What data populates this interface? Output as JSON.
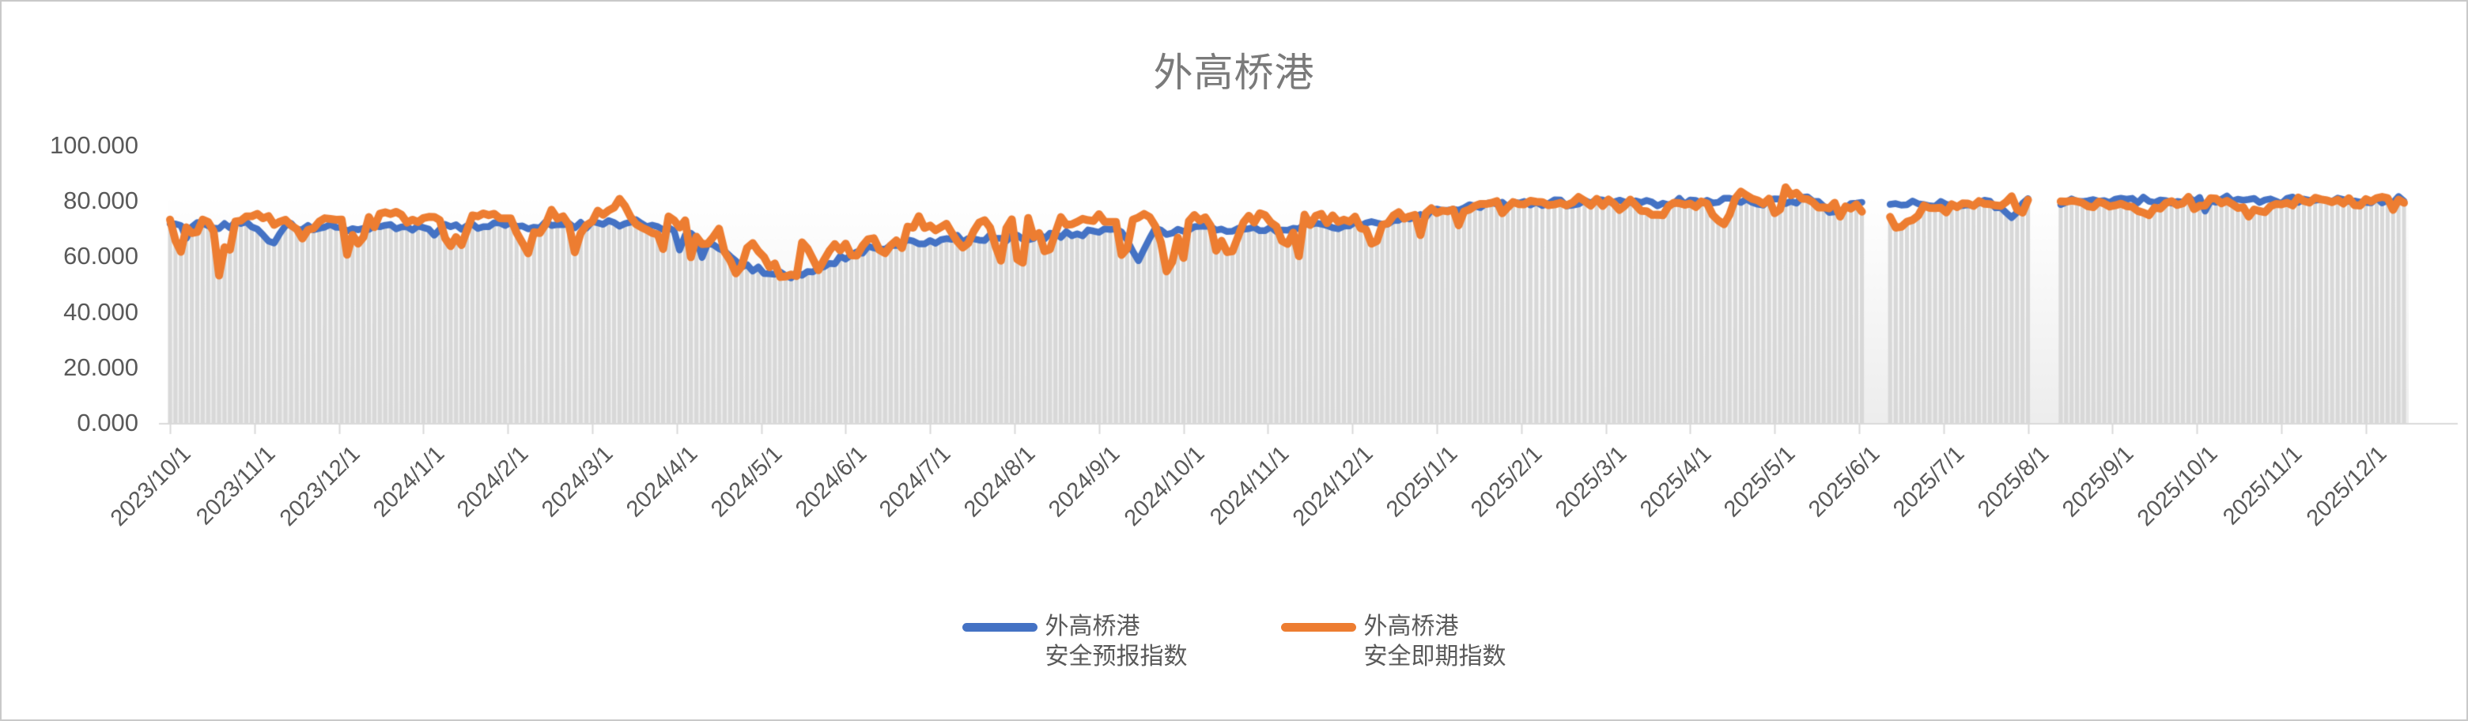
{
  "window": {
    "border_color": "#c9c9c9",
    "background": "#ffffff"
  },
  "chart_data": {
    "type": "line",
    "title": "外高桥港",
    "title_color": "#7a7a7a",
    "grid": false,
    "legend_position": "bottom",
    "y_axis": {
      "min": 0,
      "max": 100,
      "tick_labels": [
        "100.000",
        "80.000",
        "60.000",
        "40.000",
        "20.000",
        "0.000"
      ],
      "tick_values": [
        100,
        80,
        60,
        40,
        20,
        0
      ],
      "label_color": "#595959"
    },
    "x_axis": {
      "tick_labels": [
        "2023/10/1",
        "2023/11/1",
        "2023/12/1",
        "2024/1/1",
        "2024/2/1",
        "2024/3/1",
        "2024/4/1",
        "2024/5/1",
        "2024/6/1",
        "2024/7/1",
        "2024/8/1",
        "2024/9/1",
        "2024/10/1",
        "2024/11/1",
        "2024/12/1",
        "2025/1/1",
        "2025/2/1",
        "2025/3/1",
        "2025/4/1",
        "2025/5/1",
        "2025/6/1",
        "2025/7/1",
        "2025/8/1",
        "2025/9/1",
        "2025/10/1",
        "2025/11/1",
        "2025/12/1"
      ],
      "label_color": "#595959",
      "axis_color": "#d9d9d9",
      "data_start": "2023/10/1",
      "data_end": "2025/12/16",
      "sample_interval_days": 2
    },
    "gaps": [
      {
        "start": "2025/6/4",
        "end": "2025/6/11"
      },
      {
        "start": "2025/8/3",
        "end": "2025/8/12"
      }
    ],
    "bars": {
      "color": "#d8d8d8",
      "backdrop_top": "#ffffff",
      "backdrop_bottom": "#ededed",
      "rule": "column drawn at every sample up to min(series values)"
    },
    "series": [
      {
        "name_line1": "外高桥港",
        "name_line2": "安全预报指数",
        "color": "#4472C4",
        "width": 8.5
      },
      {
        "name_line1": "外高桥港",
        "name_line2": "安全即期指数",
        "color": "#ED7D31",
        "width": 10
      }
    ],
    "anchors": {
      "dates": [
        "2023/10/1",
        "2023/10/5",
        "2023/10/8",
        "2023/10/14",
        "2023/10/20",
        "2023/10/24",
        "2023/11/1",
        "2023/11/8",
        "2023/11/12",
        "2023/11/18",
        "2023/11/24",
        "2023/12/2",
        "2023/12/8",
        "2023/12/12",
        "2023/12/20",
        "2023/12/28",
        "2024/1/5",
        "2024/1/12",
        "2024/1/16",
        "2024/1/24",
        "2024/2/1",
        "2024/2/8",
        "2024/2/12",
        "2024/2/20",
        "2024/2/26",
        "2024/3/4",
        "2024/3/10",
        "2024/3/16",
        "2024/3/22",
        "2024/3/28",
        "2024/4/4",
        "2024/4/10",
        "2024/4/16",
        "2024/4/22",
        "2024/4/28",
        "2024/5/4",
        "2024/5/10",
        "2024/5/16",
        "2024/5/22",
        "2024/5/28",
        "2024/6/4",
        "2024/6/10",
        "2024/6/16",
        "2024/6/22",
        "2024/6/28",
        "2024/7/6",
        "2024/7/14",
        "2024/7/20",
        "2024/7/28",
        "2024/8/5",
        "2024/8/12",
        "2024/8/18",
        "2024/8/26",
        "2024/9/3",
        "2024/9/10",
        "2024/9/15",
        "2024/9/20",
        "2024/9/26",
        "2024/10/2",
        "2024/10/10",
        "2024/10/18",
        "2024/10/24",
        "2024/11/1",
        "2024/11/8",
        "2024/11/14",
        "2024/11/22",
        "2024/12/1",
        "2024/12/8",
        "2024/12/15",
        "2024/12/22",
        "2025/1/1",
        "2025/1/10",
        "2025/1/20",
        "2025/2/1",
        "2025/2/10",
        "2025/2/20",
        "2025/3/1",
        "2025/3/10",
        "2025/3/20",
        "2025/3/28",
        "2025/4/6",
        "2025/4/14",
        "2025/4/18",
        "2025/4/26",
        "2025/5/5",
        "2025/5/14",
        "2025/5/22",
        "2025/5/30",
        "2025/6/8",
        "2025/6/16",
        "2025/6/24",
        "2025/7/2",
        "2025/7/10",
        "2025/7/18",
        "2025/7/26",
        "2025/8/1",
        "2025/8/14",
        "2025/8/20",
        "2025/8/28",
        "2025/9/5",
        "2025/9/12",
        "2025/9/20",
        "2025/9/28",
        "2025/10/6",
        "2025/10/14",
        "2025/10/22",
        "2025/10/30",
        "2025/11/7",
        "2025/11/15",
        "2025/11/23",
        "2025/12/1",
        "2025/12/8",
        "2025/12/16"
      ],
      "blue": [
        71.5,
        71.8,
        72,
        71,
        70.5,
        71.5,
        71,
        64,
        71.5,
        70.5,
        71,
        70,
        70.5,
        70,
        70.5,
        70,
        71,
        70.5,
        71,
        70.5,
        71.5,
        70,
        71.5,
        72,
        71,
        72.5,
        72,
        72.5,
        71.5,
        70,
        68,
        66,
        62,
        58,
        56,
        53.5,
        53,
        54,
        55,
        58,
        61,
        63,
        64,
        65,
        65.5,
        66,
        66.5,
        67,
        66.5,
        67,
        67.5,
        68,
        68.5,
        69,
        69.5,
        57.5,
        69.5,
        69,
        69.5,
        70,
        69.5,
        70,
        70.5,
        70,
        70.5,
        71,
        71.5,
        72,
        73,
        74.5,
        76,
        77.5,
        78.5,
        79,
        79.5,
        79,
        80,
        79.5,
        79,
        80,
        79.5,
        80,
        80.5,
        79.5,
        80,
        80.5,
        76,
        79,
        78.5,
        79,
        79.5,
        78.5,
        79,
        79.5,
        75,
        80,
        79.5,
        80,
        80.5,
        80,
        80.5,
        80,
        80.5,
        80,
        81,
        80.5,
        80,
        80.5,
        80,
        81,
        80.5,
        80,
        81
      ],
      "orange": [
        73.5,
        60,
        74.5,
        74,
        62,
        74.5,
        74,
        73,
        74.5,
        66,
        74,
        74.5,
        63,
        74,
        74.5,
        73.5,
        74.5,
        64,
        75,
        74,
        74.5,
        63,
        75,
        75.5,
        68,
        76,
        79.5,
        75,
        66,
        74,
        72,
        63,
        68,
        55,
        64,
        58,
        52,
        64,
        56,
        66,
        60,
        67,
        62,
        68.5,
        70,
        71,
        64,
        72,
        71.5,
        72,
        60,
        72.5,
        73,
        73.5,
        72,
        73,
        73.5,
        56.5,
        74,
        73,
        61,
        74,
        73.5,
        64,
        73,
        74,
        74,
        66,
        74.5,
        76,
        77,
        78,
        78.5,
        79.5,
        78.5,
        80,
        79,
        80,
        73.5,
        79.5,
        78.5,
        71.5,
        85.5,
        79,
        83.5,
        79.5,
        78.5,
        77.5,
        76,
        70.5,
        78,
        77,
        78.5,
        79,
        78,
        79,
        78.5,
        79.5,
        79,
        79.5,
        74.5,
        79.5,
        80,
        79.5,
        80,
        73.5,
        79.5,
        80,
        79.5,
        80,
        79.5,
        80,
        80.5
      ]
    },
    "noise": {
      "seed": 42,
      "pre2025": {
        "blue_jitter": 1.3,
        "orange_jitter": 2.2,
        "orange_dip_prob": 0.1,
        "orange_dip_min": 4,
        "orange_dip_max": 13,
        "blue_dip_prob": 0.015,
        "blue_dip_min": 3,
        "blue_dip_max": 8,
        "orange_up_prob": 0.04,
        "orange_up_max": 3.5
      },
      "from2025": {
        "blue_jitter": 1.1,
        "orange_jitter": 1.6,
        "orange_dip_prob": 0.05,
        "orange_dip_min": 2,
        "orange_dip_max": 6,
        "blue_dip_prob": 0.01,
        "blue_dip_min": 2,
        "blue_dip_max": 5,
        "orange_up_prob": 0.02,
        "orange_up_max": 2.5
      }
    }
  },
  "legend": {
    "items": [
      {
        "line1": "外高桥港",
        "line2": "安全预报指数",
        "color": "#4472C4"
      },
      {
        "line1": "外高桥港",
        "line2": "安全即期指数",
        "color": "#ED7D31"
      }
    ]
  }
}
